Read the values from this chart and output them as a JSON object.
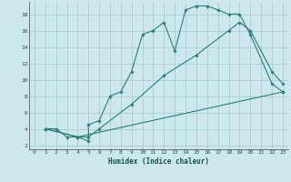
{
  "xlabel": "Humidex (Indice chaleur)",
  "background_color": "#cce8ec",
  "grid_color": "#aacdd4",
  "line_color": "#2d7d7d",
  "xlim": [
    -0.5,
    23.5
  ],
  "ylim": [
    1.5,
    19.5
  ],
  "xticks": [
    0,
    1,
    2,
    3,
    4,
    5,
    6,
    7,
    8,
    9,
    10,
    11,
    12,
    13,
    14,
    15,
    16,
    17,
    18,
    19,
    20,
    21,
    22,
    23
  ],
  "yticks": [
    2,
    4,
    6,
    8,
    10,
    12,
    14,
    16,
    18
  ],
  "line1_x": [
    1,
    2,
    3,
    4,
    5,
    5,
    6,
    7,
    8,
    9,
    10,
    11,
    12,
    13,
    14,
    15,
    16,
    17,
    18,
    19,
    20,
    22,
    23
  ],
  "line1_y": [
    4,
    4,
    3,
    3,
    2.5,
    4.5,
    5,
    8,
    8.5,
    11,
    15.5,
    16,
    17,
    13.5,
    18.5,
    19,
    19,
    18.5,
    18,
    18,
    15.5,
    9.5,
    8.5
  ],
  "line2_x": [
    1,
    4,
    5,
    6,
    9,
    12,
    15,
    18,
    19,
    20,
    22,
    23
  ],
  "line2_y": [
    4,
    3,
    3,
    4,
    7,
    10.5,
    13,
    16,
    17,
    16,
    11,
    9.5
  ],
  "line3_x": [
    1,
    4,
    23
  ],
  "line3_y": [
    4,
    3,
    8.5
  ]
}
